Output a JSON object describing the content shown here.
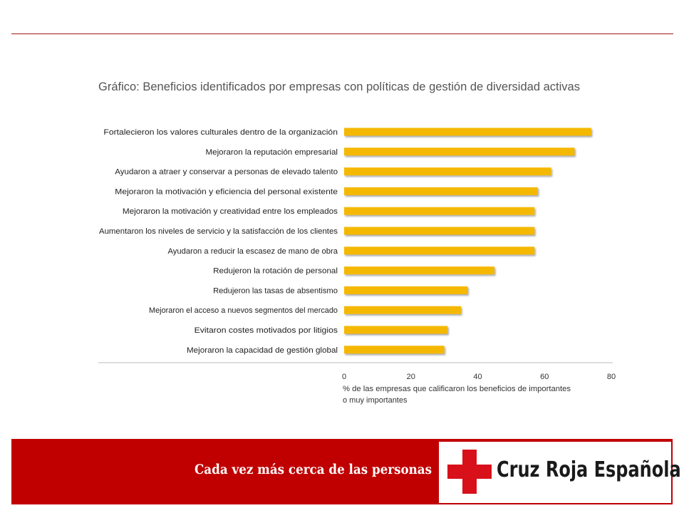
{
  "chart_data": {
    "type": "bar",
    "orientation": "horizontal",
    "title": "Gráfico: Beneficios identificados por empresas con políticas de gestión de diversidad activas",
    "categories": [
      "Fortalecieron los valores culturales dentro de la organización",
      "Mejoraron la reputación empresarial",
      "Ayudaron a atraer y conservar a personas de elevado talento",
      "Mejoraron la motivación y eficiencia del personal existente",
      "Mejoraron la motivación y creatividad entre los empleados",
      "Aumentaron los niveles de servicio y la satisfacción de los clientes",
      "Ayudaron a reducir la escasez de mano de obra",
      "Redujeron la rotación de personal",
      "Redujeron las tasas de absentismo",
      "Mejoraron el acceso a nuevos segmentos del mercado",
      "Evitaron costes motivados por litigios",
      "Mejoraron la capacidad de gestión global"
    ],
    "values": [
      74,
      69,
      62,
      58,
      57,
      57,
      57,
      45,
      37,
      35,
      31,
      30
    ],
    "xlim": [
      0,
      80
    ],
    "xticks": [
      "0",
      "20",
      "40",
      "60",
      "80"
    ],
    "xlabel_line1": "% de las empresas que calificaron los beneficios de importantes",
    "xlabel_line2": "o muy importantes",
    "bar_color": "#f5b800",
    "grid": false
  },
  "footer": {
    "slogan": "Cada vez más cerca de las personas",
    "logo_text": "Cruz Roja Española",
    "background_color": "#c00000",
    "cross_color": "#d8101a"
  }
}
